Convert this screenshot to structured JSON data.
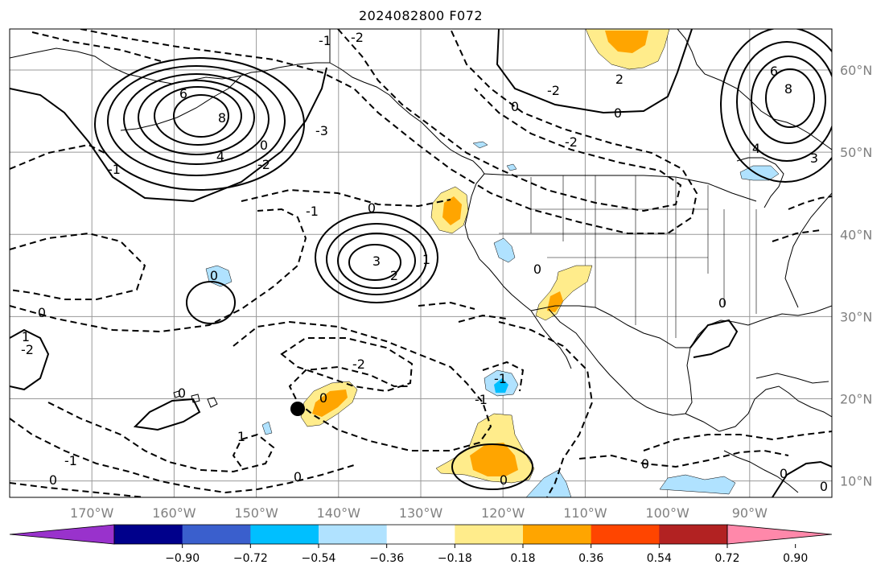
{
  "title": "2024082800 F072",
  "map": {
    "lon_range": [
      -180,
      -80
    ],
    "lat_range": [
      8,
      65
    ],
    "lon_ticks": [
      {
        "value": -170,
        "label": "170°W"
      },
      {
        "value": -160,
        "label": "160°W"
      },
      {
        "value": -150,
        "label": "150°W"
      },
      {
        "value": -140,
        "label": "140°W"
      },
      {
        "value": -130,
        "label": "130°W"
      },
      {
        "value": -120,
        "label": "120°W"
      },
      {
        "value": -110,
        "label": "110°W"
      },
      {
        "value": -100,
        "label": "100°W"
      },
      {
        "value": -90,
        "label": "90°W"
      }
    ],
    "lat_ticks": [
      {
        "value": 10,
        "label": "10°N"
      },
      {
        "value": 20,
        "label": "20°N"
      },
      {
        "value": 30,
        "label": "30°N"
      },
      {
        "value": 40,
        "label": "40°N"
      },
      {
        "value": 50,
        "label": "50°N"
      },
      {
        "value": 60,
        "label": "60°N"
      }
    ],
    "gridlines": true,
    "contour_labels": [
      "0",
      "1",
      "2",
      "3",
      "4",
      "6",
      "8",
      "-1",
      "-2",
      "-3"
    ]
  },
  "colorbar": {
    "colors": [
      "#9932cc",
      "#00008b",
      "#3a5fcd",
      "#00bfff",
      "#b0e2ff",
      "#ffffff",
      "#ffec8b",
      "#ffa500",
      "#ff4500",
      "#b22222",
      "#ff88aa"
    ],
    "labels": [
      "−0.90",
      "−0.72",
      "−0.54",
      "−0.36",
      "−0.18",
      "0.18",
      "0.36",
      "0.54",
      "0.72",
      "0.90"
    ]
  },
  "colors": {
    "positive": "#ffec8b",
    "positive_strong": "#ffa500",
    "negative": "#b0e2ff",
    "negative_strong": "#00bfff"
  }
}
